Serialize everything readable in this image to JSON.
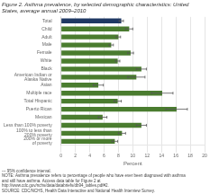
{
  "chart_data": {
    "type": "bar",
    "orientation": "horizontal",
    "title": "Figure 2. Asthma prevalence, by selected demographic characteristics: United States, average annual 2009–2010",
    "categories": [
      "Total",
      "Child",
      "Adult",
      "Male",
      "Female",
      "White",
      "Black",
      "American Indian or\nAlaska Native",
      "Asian",
      "Multiple race",
      "Total Hispanic",
      "Puerto Rican",
      "Mexican",
      "Less than 100% poverty",
      "100% to less than\n200% poverty",
      "200% or more\nof poverty"
    ],
    "values": [
      8.4,
      9.5,
      8.0,
      7.0,
      9.7,
      7.9,
      11.2,
      10.5,
      5.2,
      14.1,
      7.9,
      16.1,
      5.8,
      11.2,
      8.5,
      7.5
    ],
    "errors": [
      0.3,
      0.5,
      0.3,
      0.3,
      0.4,
      0.3,
      0.7,
      1.2,
      0.7,
      1.5,
      0.5,
      1.5,
      0.6,
      0.7,
      0.5,
      0.4
    ],
    "colors": [
      "#1f3864",
      "#4a7c2f",
      "#4a7c2f",
      "#4a7c2f",
      "#4a7c2f",
      "#4a7c2f",
      "#4a7c2f",
      "#4a7c2f",
      "#4a7c2f",
      "#4a7c2f",
      "#4a7c2f",
      "#4a7c2f",
      "#4a7c2f",
      "#4a7c2f",
      "#4a7c2f",
      "#4a7c2f"
    ],
    "xlabel": "Percent",
    "xlim": [
      0,
      20
    ],
    "xticks": [
      0,
      2,
      4,
      6,
      8,
      10,
      12,
      14,
      16,
      18,
      20
    ],
    "grid": true,
    "footnote": "--- 95% confidence interval.\nNOTE: Asthma prevalence refers to percentage of people who have ever been diagnosed with asthma\nand still have asthma. Access data table for Figure 2 at\nhttp://www.cdc.gov/nchs/data/databriefs/db94_tables.pdf#2.\nSOURCE: CDC/NCHS, Health Data Interactive and National Health Interview Survey."
  }
}
